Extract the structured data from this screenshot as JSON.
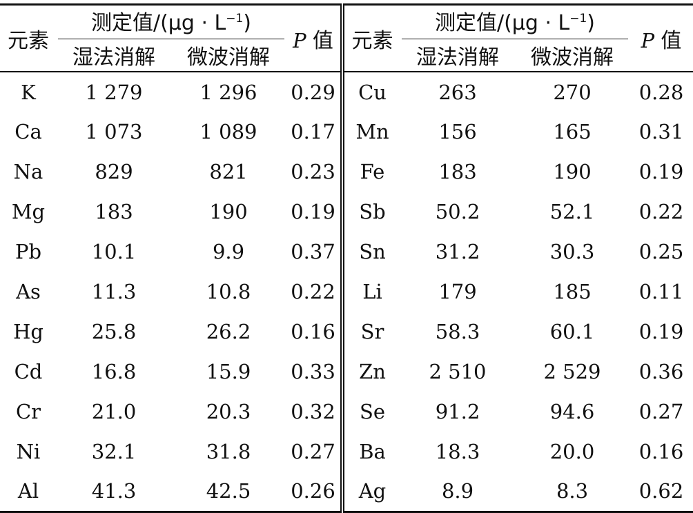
{
  "table": {
    "headers": {
      "element": "元素",
      "measured_group_prefix": "测定值/(μg · L",
      "measured_group_exp": "−1",
      "measured_group_suffix": ")",
      "wet": "湿法消解",
      "microwave": "微波消解",
      "p_letter": "P",
      "p_word": "值"
    },
    "left_rows": [
      {
        "element": "K",
        "wet": "1 279",
        "microwave": "1 296",
        "p": "0.29"
      },
      {
        "element": "Ca",
        "wet": "1 073",
        "microwave": "1 089",
        "p": "0.17"
      },
      {
        "element": "Na",
        "wet": "829",
        "microwave": "821",
        "p": "0.23"
      },
      {
        "element": "Mg",
        "wet": "183",
        "microwave": "190",
        "p": "0.19"
      },
      {
        "element": "Pb",
        "wet": "10.1",
        "microwave": "9.9",
        "p": "0.37"
      },
      {
        "element": "As",
        "wet": "11.3",
        "microwave": "10.8",
        "p": "0.22"
      },
      {
        "element": "Hg",
        "wet": "25.8",
        "microwave": "26.2",
        "p": "0.16"
      },
      {
        "element": "Cd",
        "wet": "16.8",
        "microwave": "15.9",
        "p": "0.33"
      },
      {
        "element": "Cr",
        "wet": "21.0",
        "microwave": "20.3",
        "p": "0.32"
      },
      {
        "element": "Ni",
        "wet": "32.1",
        "microwave": "31.8",
        "p": "0.27"
      },
      {
        "element": "Al",
        "wet": "41.3",
        "microwave": "42.5",
        "p": "0.26"
      }
    ],
    "right_rows": [
      {
        "element": "Cu",
        "wet": "263",
        "microwave": "270",
        "p": "0.28"
      },
      {
        "element": "Mn",
        "wet": "156",
        "microwave": "165",
        "p": "0.31"
      },
      {
        "element": "Fe",
        "wet": "183",
        "microwave": "190",
        "p": "0.19"
      },
      {
        "element": "Sb",
        "wet": "50.2",
        "microwave": "52.1",
        "p": "0.22"
      },
      {
        "element": "Sn",
        "wet": "31.2",
        "microwave": "30.3",
        "p": "0.25"
      },
      {
        "element": "Li",
        "wet": "179",
        "microwave": "185",
        "p": "0.11"
      },
      {
        "element": "Sr",
        "wet": "58.3",
        "microwave": "60.1",
        "p": "0.19"
      },
      {
        "element": "Zn",
        "wet": "2 510",
        "microwave": "2 529",
        "p": "0.36"
      },
      {
        "element": "Se",
        "wet": "91.2",
        "microwave": "94.6",
        "p": "0.27"
      },
      {
        "element": "Ba",
        "wet": "18.3",
        "microwave": "20.0",
        "p": "0.16"
      },
      {
        "element": "Ag",
        "wet": "8.9",
        "microwave": "8.3",
        "p": "0.62"
      }
    ]
  }
}
